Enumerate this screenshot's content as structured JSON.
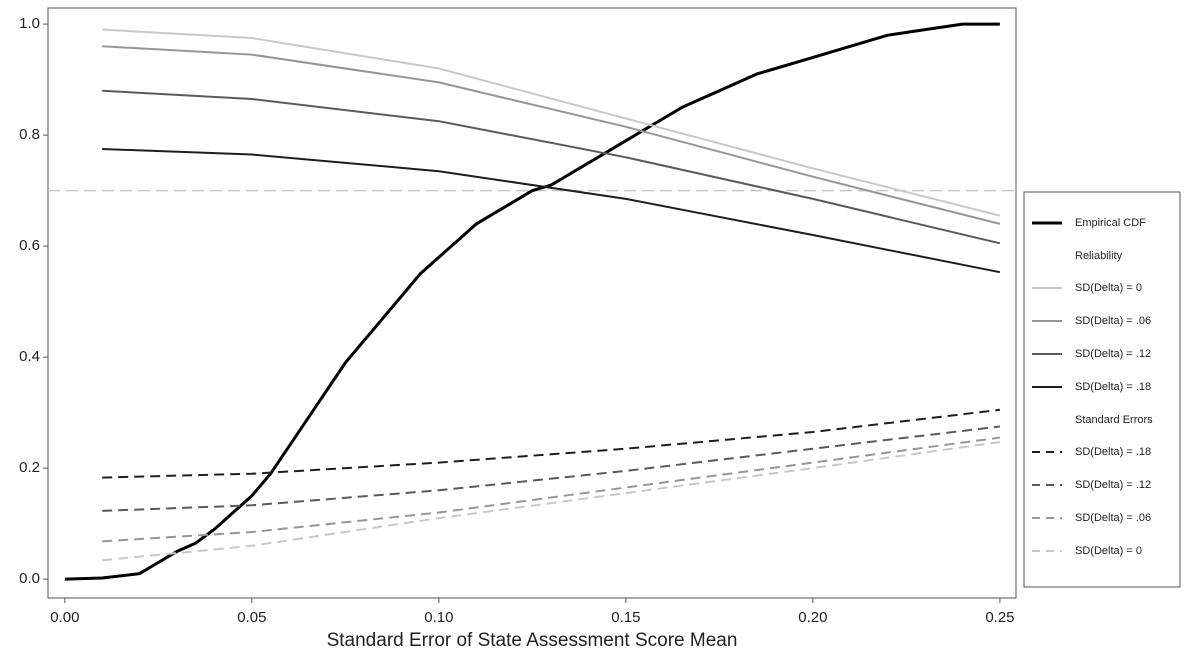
{
  "chart_data": {
    "type": "line",
    "x_label": "Standard Error of State Assessment Score Mean",
    "xlim": [
      -0.0045,
      0.2543
    ],
    "ylim": [
      -0.034,
      1.029
    ],
    "xticks": [
      {
        "value": 0,
        "label": "0.00"
      },
      {
        "value": 0.05,
        "label": "0.05"
      },
      {
        "value": 0.1,
        "label": "0.10"
      },
      {
        "value": 0.15,
        "label": "0.15"
      },
      {
        "value": 0.2,
        "label": "0.20"
      },
      {
        "value": 0.25,
        "label": "0.25"
      }
    ],
    "yticks": [
      {
        "value": 0,
        "label": "0.0"
      },
      0.2,
      0.4,
      0.6,
      0.8,
      {
        "value": 1,
        "label": "1.0"
      }
    ],
    "hline": {
      "value": 0.7,
      "color": "#c8c8c8"
    },
    "series": [
      {
        "name": "Empirical CDF",
        "color": "#000000",
        "width": 3,
        "dash": false,
        "x": [
          0,
          0.01,
          0.02,
          0.025,
          0.03,
          0.035,
          0.04,
          0.045,
          0.05,
          0.055,
          0.06,
          0.065,
          0.07,
          0.075,
          0.08,
          0.085,
          0.09,
          0.095,
          0.1,
          0.105,
          0.11,
          0.115,
          0.12,
          0.125,
          0.13,
          0.135,
          0.14,
          0.145,
          0.15,
          0.155,
          0.16,
          0.165,
          0.17,
          0.175,
          0.18,
          0.185,
          0.19,
          0.2,
          0.21,
          0.22,
          0.23,
          0.24,
          0.25
        ],
        "values": [
          0,
          0.002,
          0.01,
          0.03,
          0.05,
          0.065,
          0.09,
          0.12,
          0.15,
          0.19,
          0.24,
          0.29,
          0.34,
          0.39,
          0.43,
          0.47,
          0.51,
          0.55,
          0.58,
          0.61,
          0.64,
          0.66,
          0.68,
          0.7,
          0.71,
          0.73,
          0.75,
          0.77,
          0.79,
          0.81,
          0.83,
          0.85,
          0.865,
          0.88,
          0.895,
          0.91,
          0.92,
          0.94,
          0.96,
          0.98,
          0.99,
          1.0,
          1.0
        ]
      },
      {
        "name": "SD(Delta) = 0",
        "group": "Reliability",
        "color": "#c8c8c8",
        "width": 2,
        "dash": false,
        "x": [
          0.01,
          0.05,
          0.1,
          0.15,
          0.2,
          0.25
        ],
        "values": [
          0.99,
          0.975,
          0.92,
          0.83,
          0.74,
          0.655
        ]
      },
      {
        "name": "SD(Delta) = .06",
        "group": "Reliability",
        "color": "#969696",
        "width": 2,
        "dash": false,
        "x": [
          0.01,
          0.05,
          0.1,
          0.15,
          0.2,
          0.25
        ],
        "values": [
          0.96,
          0.945,
          0.895,
          0.815,
          0.725,
          0.64
        ]
      },
      {
        "name": "SD(Delta) = .12",
        "group": "Reliability",
        "color": "#5a5a5a",
        "width": 2,
        "dash": false,
        "x": [
          0.01,
          0.05,
          0.1,
          0.15,
          0.2,
          0.25
        ],
        "values": [
          0.88,
          0.865,
          0.825,
          0.76,
          0.685,
          0.605
        ]
      },
      {
        "name": "SD(Delta) = .18",
        "group": "Reliability",
        "color": "#1e1e1e",
        "width": 2,
        "dash": false,
        "x": [
          0.01,
          0.05,
          0.1,
          0.15,
          0.2,
          0.25
        ],
        "values": [
          0.775,
          0.765,
          0.735,
          0.685,
          0.62,
          0.553
        ]
      },
      {
        "name": "SD(Delta) = .18",
        "group": "Standard Errors",
        "color": "#1e1e1e",
        "width": 2,
        "dash": true,
        "x": [
          0.01,
          0.05,
          0.1,
          0.15,
          0.2,
          0.25
        ],
        "values": [
          0.183,
          0.19,
          0.21,
          0.235,
          0.265,
          0.305
        ]
      },
      {
        "name": "SD(Delta) = .12",
        "group": "Standard Errors",
        "color": "#5a5a5a",
        "width": 2,
        "dash": true,
        "x": [
          0.01,
          0.05,
          0.1,
          0.15,
          0.2,
          0.25
        ],
        "values": [
          0.123,
          0.133,
          0.16,
          0.195,
          0.235,
          0.275
        ]
      },
      {
        "name": "SD(Delta) = .06",
        "group": "Standard Errors",
        "color": "#969696",
        "width": 2,
        "dash": true,
        "x": [
          0.01,
          0.05,
          0.1,
          0.15,
          0.2,
          0.25
        ],
        "values": [
          0.068,
          0.085,
          0.12,
          0.165,
          0.21,
          0.255
        ]
      },
      {
        "name": "SD(Delta) = 0",
        "group": "Standard Errors",
        "color": "#c8c8c8",
        "width": 2,
        "dash": true,
        "x": [
          0.01,
          0.05,
          0.1,
          0.15,
          0.2,
          0.25
        ],
        "values": [
          0.034,
          0.06,
          0.11,
          0.155,
          0.2,
          0.247
        ]
      }
    ]
  }
}
